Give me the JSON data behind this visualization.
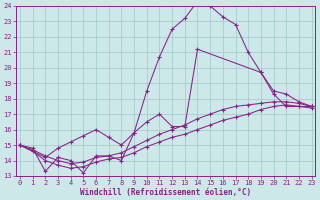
{
  "bg_color": "#cce8e8",
  "line_color": "#882288",
  "grid_color": "#a0c8c8",
  "xlim_min": -0.3,
  "xlim_max": 23.3,
  "ylim_min": 13,
  "ylim_max": 24,
  "xticks": [
    0,
    1,
    2,
    3,
    4,
    5,
    6,
    7,
    8,
    9,
    10,
    11,
    12,
    13,
    14,
    15,
    16,
    17,
    18,
    19,
    20,
    21,
    22,
    23
  ],
  "yticks": [
    13,
    14,
    15,
    16,
    17,
    18,
    19,
    20,
    21,
    22,
    23,
    24
  ],
  "xlabel": "Windchill (Refroidissement éolien,°C)",
  "s1_x": [
    0,
    1,
    2,
    3,
    4,
    5,
    6,
    7,
    8,
    9,
    10,
    11,
    12,
    13,
    14,
    15,
    16,
    17,
    18,
    19,
    20,
    21,
    22,
    23
  ],
  "s1_y": [
    15.0,
    14.8,
    13.3,
    14.2,
    14.0,
    13.2,
    14.3,
    14.3,
    14.0,
    15.8,
    18.5,
    20.7,
    22.5,
    23.2,
    24.3,
    24.0,
    23.3,
    22.8,
    21.0,
    19.7,
    18.3,
    17.5,
    17.5,
    17.5
  ],
  "s2_x": [
    0,
    2,
    3,
    4,
    5,
    6,
    7,
    8,
    9,
    10,
    11,
    12,
    13,
    14,
    19,
    20,
    21,
    22,
    23
  ],
  "s2_y": [
    15.0,
    14.2,
    14.8,
    15.2,
    15.6,
    16.0,
    15.5,
    15.0,
    15.8,
    16.5,
    17.0,
    16.2,
    16.2,
    21.2,
    19.7,
    18.5,
    18.3,
    17.8,
    17.5
  ],
  "s3_x": [
    0,
    1,
    2,
    3,
    4,
    5,
    6,
    7,
    8,
    9,
    10,
    11,
    12,
    13,
    14,
    15,
    16,
    17,
    18,
    19,
    20,
    21,
    22,
    23
  ],
  "s3_y": [
    15.0,
    14.7,
    14.3,
    14.0,
    13.8,
    13.9,
    14.2,
    14.3,
    14.5,
    14.9,
    15.3,
    15.7,
    16.0,
    16.3,
    16.7,
    17.0,
    17.3,
    17.5,
    17.6,
    17.7,
    17.8,
    17.8,
    17.7,
    17.5
  ],
  "s4_x": [
    0,
    1,
    2,
    3,
    4,
    5,
    6,
    7,
    8,
    9,
    10,
    11,
    12,
    13,
    14,
    15,
    16,
    17,
    18,
    19,
    20,
    21,
    22,
    23
  ],
  "s4_y": [
    15.0,
    14.6,
    14.0,
    13.7,
    13.5,
    13.6,
    13.9,
    14.1,
    14.2,
    14.5,
    14.9,
    15.2,
    15.5,
    15.7,
    16.0,
    16.3,
    16.6,
    16.8,
    17.0,
    17.3,
    17.5,
    17.6,
    17.5,
    17.4
  ]
}
